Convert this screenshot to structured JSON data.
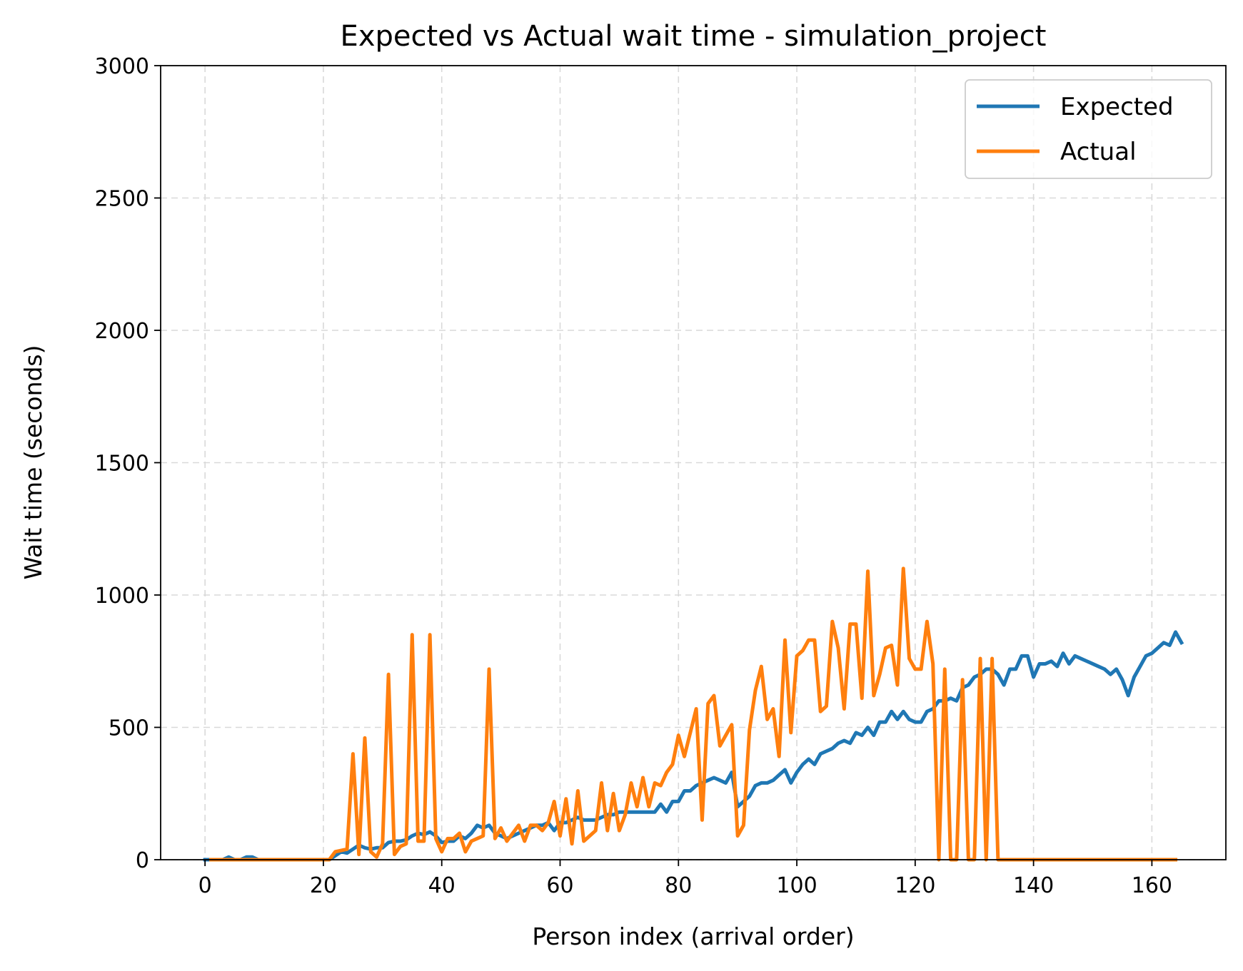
{
  "chart_data": {
    "type": "line",
    "title": "Expected vs Actual wait time - simulation_project",
    "xlabel": "Person index (arrival order)",
    "ylabel": "Wait time (seconds)",
    "xlim": [
      -7.5,
      172.5
    ],
    "ylim": [
      0,
      3000
    ],
    "xticks": [
      0,
      20,
      40,
      60,
      80,
      100,
      120,
      140,
      160
    ],
    "yticks": [
      0,
      500,
      1000,
      1500,
      2000,
      2500,
      3000
    ],
    "grid": true,
    "legend": "top-right",
    "colors": {
      "expected": "#1f77b4",
      "actual": "#ff7f0e"
    },
    "series": [
      {
        "name": "Expected",
        "color": "#1f77b4",
        "values": [
          0,
          0,
          0,
          0,
          10,
          0,
          0,
          10,
          10,
          0,
          0,
          0,
          0,
          0,
          0,
          0,
          0,
          0,
          0,
          0,
          0,
          0,
          15,
          30,
          25,
          40,
          55,
          45,
          40,
          45,
          45,
          65,
          70,
          70,
          75,
          90,
          100,
          95,
          105,
          90,
          65,
          70,
          70,
          90,
          80,
          100,
          130,
          120,
          130,
          100,
          90,
          80,
          90,
          100,
          110,
          120,
          130,
          130,
          140,
          110,
          140,
          140,
          150,
          160,
          150,
          150,
          150,
          160,
          170,
          170,
          180,
          180,
          180,
          180,
          180,
          180,
          180,
          210,
          180,
          220,
          220,
          260,
          260,
          280,
          290,
          300,
          310,
          300,
          290,
          330,
          200,
          220,
          240,
          280,
          290,
          290,
          300,
          320,
          340,
          290,
          330,
          360,
          380,
          360,
          400,
          410,
          420,
          440,
          450,
          440,
          480,
          470,
          500,
          470,
          520,
          520,
          560,
          530,
          560,
          530,
          520,
          520,
          560,
          570,
          600,
          600,
          610,
          600,
          650,
          660,
          690,
          700,
          720,
          720,
          700,
          660,
          720,
          720,
          770,
          770,
          690,
          740,
          740,
          750,
          730,
          780,
          740,
          770,
          760,
          750,
          740,
          730,
          720,
          700,
          720,
          680,
          620,
          690,
          730,
          770,
          780,
          800,
          820,
          810,
          860,
          820
        ],
        "values_start_x": 0
      },
      {
        "name": "Actual",
        "color": "#ff7f0e",
        "values": [
          0,
          0,
          0,
          0,
          0,
          0,
          0,
          0,
          0,
          0,
          0,
          0,
          0,
          0,
          0,
          0,
          0,
          0,
          0,
          0,
          0,
          30,
          35,
          40,
          400,
          20,
          460,
          30,
          10,
          60,
          700,
          20,
          50,
          60,
          850,
          70,
          70,
          850,
          80,
          30,
          80,
          80,
          100,
          30,
          70,
          80,
          90,
          720,
          80,
          120,
          70,
          100,
          130,
          70,
          130,
          130,
          110,
          140,
          220,
          90,
          230,
          60,
          260,
          70,
          90,
          110,
          290,
          110,
          250,
          110,
          170,
          290,
          200,
          310,
          200,
          290,
          280,
          330,
          360,
          470,
          390,
          480,
          570,
          150,
          590,
          620,
          430,
          470,
          510,
          90,
          130,
          490,
          640,
          730,
          530,
          570,
          390,
          830,
          480,
          770,
          790,
          830,
          830,
          560,
          580,
          900,
          800,
          570,
          890,
          890,
          610,
          1090,
          620,
          700,
          800,
          810,
          660,
          1100,
          760,
          720,
          720,
          900,
          740,
          0,
          720,
          0,
          0,
          680,
          0,
          0,
          760,
          0,
          760,
          0,
          0,
          0,
          0,
          0,
          0,
          0,
          0,
          0,
          0,
          0,
          0,
          0,
          0,
          0,
          0,
          0,
          0,
          0,
          0,
          0,
          0,
          0,
          0,
          0,
          0,
          0,
          0,
          0,
          0,
          0
        ],
        "values_start_x": 1
      }
    ]
  }
}
